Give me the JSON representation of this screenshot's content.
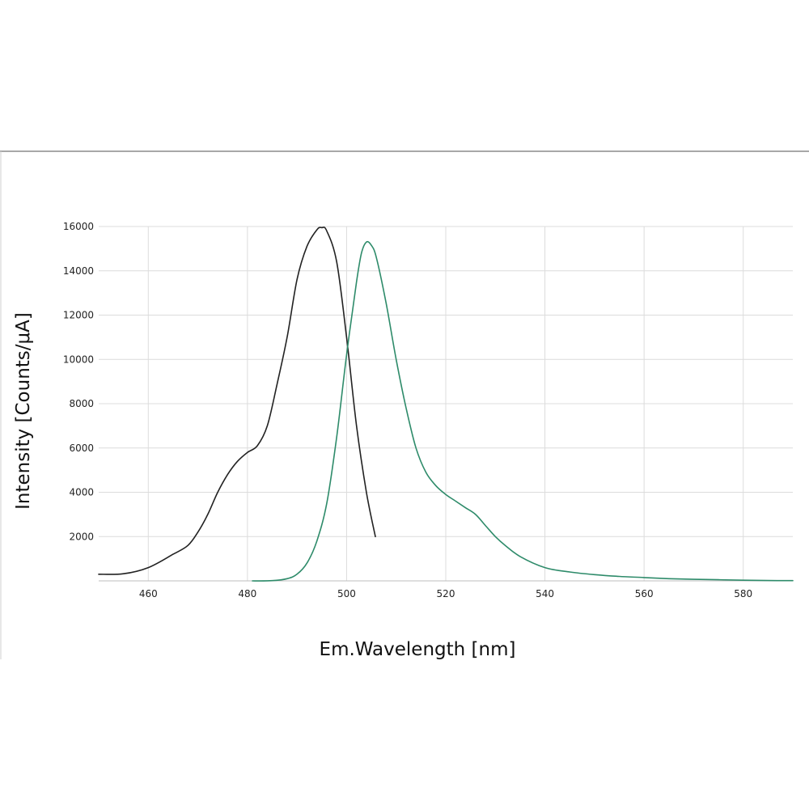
{
  "chart_data": {
    "type": "line",
    "title": "",
    "xlabel": "Em.Wavelength [nm]",
    "ylabel": "Intensity [Counts/μA]",
    "xlim": [
      450,
      590
    ],
    "ylim": [
      0,
      16000
    ],
    "grid": true,
    "x_ticks": [
      460,
      480,
      500,
      520,
      540,
      560,
      580
    ],
    "x_tick_labels": [
      "460",
      "480",
      "500",
      "520",
      "540",
      "560",
      "580"
    ],
    "y_ticks": [
      2000,
      4000,
      6000,
      8000,
      10000,
      12000,
      14000,
      16000
    ],
    "y_tick_labels": [
      "2000",
      "4000",
      "6000",
      "8000",
      "10000",
      "12000",
      "14000",
      "16000"
    ],
    "series": [
      {
        "color": "#222222",
        "x": [
          450,
          455,
          460,
          465,
          468,
          470,
          472,
          474,
          476,
          478,
          480,
          482,
          484,
          486,
          488,
          490,
          492,
          494,
          495,
          496,
          498,
          500,
          502,
          504,
          505.8
        ],
        "y": [
          300,
          320,
          600,
          1200,
          1600,
          2200,
          3000,
          4000,
          4800,
          5400,
          5800,
          6100,
          7000,
          8900,
          11000,
          13600,
          15100,
          15850,
          15950,
          15800,
          14400,
          11000,
          7000,
          4000,
          2000
        ]
      },
      {
        "color": "#2e8b6a",
        "x": [
          481,
          485,
          488,
          490,
          492,
          494,
          496,
          498,
          500,
          502,
          503,
          504,
          505,
          506,
          508,
          510,
          512,
          514,
          516,
          518,
          520,
          522,
          524,
          526,
          528,
          530,
          532,
          535,
          540,
          545,
          550,
          555,
          560,
          565,
          570,
          575,
          580,
          585,
          590
        ],
        "y": [
          0,
          10,
          100,
          300,
          800,
          1800,
          3500,
          6500,
          10200,
          13500,
          14800,
          15300,
          15150,
          14600,
          12500,
          10000,
          7800,
          6000,
          4900,
          4300,
          3900,
          3600,
          3300,
          3000,
          2500,
          2000,
          1600,
          1100,
          600,
          400,
          280,
          200,
          150,
          100,
          70,
          50,
          30,
          15,
          10
        ]
      }
    ]
  }
}
